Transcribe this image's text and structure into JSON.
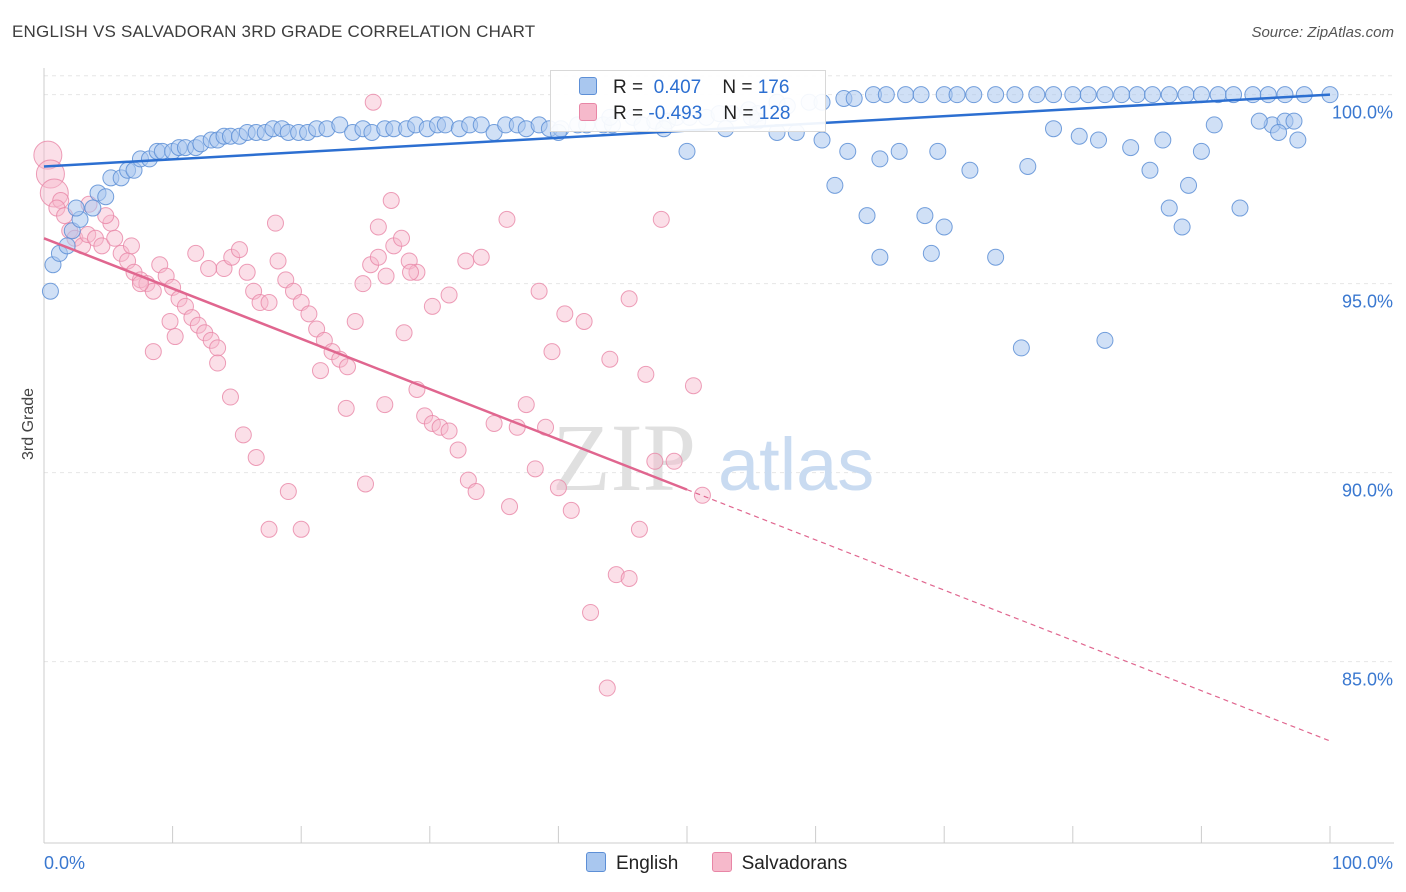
{
  "header": {
    "title": "ENGLISH VS SALVADORAN 3RD GRADE CORRELATION CHART",
    "source": "Source: ZipAtlas.com"
  },
  "colors": {
    "english_fill": "#a9c7ef",
    "english_stroke": "#5d8fd6",
    "english_line": "#2c6fd1",
    "salvadoran_fill": "#f6b9cb",
    "salvadoran_stroke": "#e886a6",
    "salvadoran_line": "#e0668f",
    "tick_text": "#3a78d0",
    "grid": "#e6e6e6"
  },
  "legend": {
    "english": {
      "r_label": "R =",
      "r_value": "0.407",
      "n_label": "N =",
      "n_value": "176"
    },
    "salvadoran": {
      "r_label": "R =",
      "r_value": "-0.493",
      "n_label": "N =",
      "n_value": "128"
    }
  },
  "bottom_legend": {
    "english": "English",
    "salvadoran": "Salvadorans"
  },
  "watermark": {
    "zip": "ZIP",
    "atlas": "atlas"
  },
  "chart_data": {
    "type": "scatter",
    "xlabel": "",
    "ylabel": "3rd Grade",
    "xlim": [
      0,
      100
    ],
    "ylim": [
      80.2,
      100.6
    ],
    "x_tick_labels": [
      "0.0%",
      "100.0%"
    ],
    "y_ticks": [
      85,
      90,
      95,
      100
    ],
    "y_tick_labels": [
      "85.0%",
      "90.0%",
      "95.0%",
      "100.0%"
    ],
    "grid": true,
    "series": [
      {
        "name": "English",
        "trend": {
          "x": [
            0,
            100
          ],
          "y": [
            98.1,
            100.0
          ],
          "dashed_from": null
        },
        "points": [
          [
            0.5,
            94.8
          ],
          [
            0.7,
            95.5
          ],
          [
            1.2,
            95.8
          ],
          [
            1.8,
            96.0
          ],
          [
            2.2,
            96.4
          ],
          [
            2.8,
            96.7
          ],
          [
            2.5,
            97.0
          ],
          [
            3.8,
            97.0
          ],
          [
            4.2,
            97.4
          ],
          [
            4.8,
            97.3
          ],
          [
            5.2,
            97.8
          ],
          [
            6.0,
            97.8
          ],
          [
            6.5,
            98.0
          ],
          [
            7.0,
            98.0
          ],
          [
            7.5,
            98.3
          ],
          [
            8.2,
            98.3
          ],
          [
            8.8,
            98.5
          ],
          [
            9.2,
            98.5
          ],
          [
            10.0,
            98.5
          ],
          [
            10.5,
            98.6
          ],
          [
            11.0,
            98.6
          ],
          [
            11.8,
            98.6
          ],
          [
            12.2,
            98.7
          ],
          [
            13.0,
            98.8
          ],
          [
            13.5,
            98.8
          ],
          [
            14.0,
            98.9
          ],
          [
            14.5,
            98.9
          ],
          [
            15.2,
            98.9
          ],
          [
            15.8,
            99.0
          ],
          [
            16.5,
            99.0
          ],
          [
            17.2,
            99.0
          ],
          [
            17.8,
            99.1
          ],
          [
            18.5,
            99.1
          ],
          [
            19.0,
            99.0
          ],
          [
            19.8,
            99.0
          ],
          [
            20.5,
            99.0
          ],
          [
            21.2,
            99.1
          ],
          [
            22.0,
            99.1
          ],
          [
            23.0,
            99.2
          ],
          [
            24.0,
            99.0
          ],
          [
            24.8,
            99.1
          ],
          [
            25.5,
            99.0
          ],
          [
            26.5,
            99.1
          ],
          [
            27.2,
            99.1
          ],
          [
            28.2,
            99.1
          ],
          [
            28.9,
            99.2
          ],
          [
            29.8,
            99.1
          ],
          [
            30.6,
            99.2
          ],
          [
            31.2,
            99.2
          ],
          [
            32.3,
            99.1
          ],
          [
            33.1,
            99.2
          ],
          [
            34.0,
            99.2
          ],
          [
            35.0,
            99.0
          ],
          [
            35.9,
            99.2
          ],
          [
            36.8,
            99.2
          ],
          [
            37.5,
            99.1
          ],
          [
            38.5,
            99.2
          ],
          [
            39.3,
            99.1
          ],
          [
            40.2,
            99.1
          ],
          [
            41.5,
            99.2
          ],
          [
            42.2,
            99.2
          ],
          [
            43.5,
            99.2
          ],
          [
            44.2,
            99.2
          ],
          [
            45.8,
            99.4
          ],
          [
            46.5,
            99.2
          ],
          [
            47.5,
            99.3
          ],
          [
            48.5,
            99.3
          ],
          [
            49.2,
            99.4
          ],
          [
            50.2,
            99.4
          ],
          [
            51.5,
            99.4
          ],
          [
            52.5,
            99.5
          ],
          [
            53.5,
            99.5
          ],
          [
            54.8,
            99.6
          ],
          [
            55.5,
            99.5
          ],
          [
            57.0,
            99.8
          ],
          [
            57.8,
            99.7
          ],
          [
            59.5,
            99.8
          ],
          [
            60.5,
            99.8
          ],
          [
            62.2,
            99.9
          ],
          [
            63.0,
            99.9
          ],
          [
            64.5,
            100.0
          ],
          [
            65.5,
            100.0
          ],
          [
            67.0,
            100.0
          ],
          [
            68.2,
            100.0
          ],
          [
            70.0,
            100.0
          ],
          [
            71.0,
            100.0
          ],
          [
            72.3,
            100.0
          ],
          [
            74.0,
            100.0
          ],
          [
            75.5,
            100.0
          ],
          [
            77.2,
            100.0
          ],
          [
            78.5,
            100.0
          ],
          [
            80.0,
            100.0
          ],
          [
            81.2,
            100.0
          ],
          [
            82.5,
            100.0
          ],
          [
            83.8,
            100.0
          ],
          [
            85.0,
            100.0
          ],
          [
            86.2,
            100.0
          ],
          [
            87.5,
            100.0
          ],
          [
            88.8,
            100.0
          ],
          [
            90.0,
            100.0
          ],
          [
            91.3,
            100.0
          ],
          [
            92.5,
            100.0
          ],
          [
            94.0,
            100.0
          ],
          [
            95.2,
            100.0
          ],
          [
            96.5,
            100.0
          ],
          [
            98.0,
            100.0
          ],
          [
            100.0,
            100.0
          ],
          [
            40.0,
            99.0
          ],
          [
            44.0,
            99.4
          ],
          [
            48.2,
            99.1
          ],
          [
            53.0,
            99.1
          ],
          [
            55.5,
            99.3
          ],
          [
            58.5,
            99.0
          ],
          [
            60.5,
            98.8
          ],
          [
            62.5,
            98.5
          ],
          [
            65.0,
            98.3
          ],
          [
            66.5,
            98.5
          ],
          [
            69.5,
            98.5
          ],
          [
            72.0,
            98.0
          ],
          [
            76.5,
            98.1
          ],
          [
            78.5,
            99.1
          ],
          [
            80.5,
            98.9
          ],
          [
            82.0,
            98.8
          ],
          [
            84.5,
            98.6
          ],
          [
            86.0,
            98.0
          ],
          [
            87.0,
            98.8
          ],
          [
            89.0,
            97.6
          ],
          [
            93.0,
            97.0
          ],
          [
            95.5,
            99.2
          ],
          [
            96.5,
            99.3
          ],
          [
            97.2,
            99.3
          ],
          [
            50.0,
            98.5
          ],
          [
            55.0,
            99.4
          ],
          [
            57.0,
            99.0
          ],
          [
            61.5,
            97.6
          ],
          [
            64.0,
            96.8
          ],
          [
            65.0,
            95.7
          ],
          [
            68.5,
            96.8
          ],
          [
            69.0,
            95.8
          ],
          [
            70.0,
            96.5
          ],
          [
            74.0,
            95.7
          ],
          [
            76.0,
            93.3
          ],
          [
            82.5,
            93.5
          ],
          [
            87.5,
            97.0
          ],
          [
            88.5,
            96.5
          ],
          [
            90.0,
            98.5
          ],
          [
            91.0,
            99.2
          ],
          [
            94.5,
            99.3
          ],
          [
            96.0,
            99.0
          ],
          [
            97.5,
            98.8
          ]
        ]
      },
      {
        "name": "Salvadorans",
        "trend": {
          "x": [
            0,
            100
          ],
          "y": [
            96.2,
            82.9
          ],
          "dashed_from": 50
        },
        "points": [
          [
            0.3,
            98.4
          ],
          [
            0.5,
            97.9
          ],
          [
            0.8,
            97.4
          ],
          [
            1.3,
            97.2
          ],
          [
            1.0,
            97.0
          ],
          [
            1.6,
            96.8
          ],
          [
            2.0,
            96.4
          ],
          [
            2.4,
            96.2
          ],
          [
            3.0,
            96.0
          ],
          [
            3.4,
            96.3
          ],
          [
            4.0,
            96.2
          ],
          [
            4.5,
            96.0
          ],
          [
            5.2,
            96.6
          ],
          [
            5.5,
            96.2
          ],
          [
            6.0,
            95.8
          ],
          [
            6.5,
            95.6
          ],
          [
            7.0,
            95.3
          ],
          [
            7.5,
            95.1
          ],
          [
            8.0,
            95.0
          ],
          [
            8.5,
            94.8
          ],
          [
            9.0,
            95.5
          ],
          [
            9.5,
            95.2
          ],
          [
            10.0,
            94.9
          ],
          [
            10.5,
            94.6
          ],
          [
            11.0,
            94.4
          ],
          [
            11.5,
            94.1
          ],
          [
            12.0,
            93.9
          ],
          [
            12.5,
            93.7
          ],
          [
            13.0,
            93.5
          ],
          [
            13.5,
            93.3
          ],
          [
            14.0,
            95.4
          ],
          [
            14.6,
            95.7
          ],
          [
            15.2,
            95.9
          ],
          [
            15.8,
            95.3
          ],
          [
            16.3,
            94.8
          ],
          [
            16.8,
            94.5
          ],
          [
            17.5,
            94.5
          ],
          [
            18.2,
            95.6
          ],
          [
            18.8,
            95.1
          ],
          [
            19.4,
            94.8
          ],
          [
            20.0,
            94.5
          ],
          [
            20.6,
            94.2
          ],
          [
            21.2,
            93.8
          ],
          [
            21.8,
            93.5
          ],
          [
            22.4,
            93.2
          ],
          [
            23.0,
            93.0
          ],
          [
            23.6,
            92.8
          ],
          [
            24.2,
            94.0
          ],
          [
            24.8,
            95.0
          ],
          [
            25.4,
            95.5
          ],
          [
            26.0,
            95.7
          ],
          [
            26.6,
            95.2
          ],
          [
            27.2,
            96.0
          ],
          [
            27.8,
            96.2
          ],
          [
            28.4,
            95.6
          ],
          [
            29.0,
            95.3
          ],
          [
            29.6,
            91.5
          ],
          [
            30.2,
            91.3
          ],
          [
            30.8,
            91.2
          ],
          [
            31.5,
            91.1
          ],
          [
            32.2,
            90.6
          ],
          [
            33.0,
            89.8
          ],
          [
            33.6,
            89.5
          ],
          [
            35.0,
            91.3
          ],
          [
            36.2,
            89.1
          ],
          [
            36.8,
            91.2
          ],
          [
            37.5,
            91.8
          ],
          [
            38.2,
            90.1
          ],
          [
            39.0,
            91.2
          ],
          [
            40.0,
            89.6
          ],
          [
            41.0,
            89.0
          ],
          [
            42.5,
            86.3
          ],
          [
            43.8,
            84.3
          ],
          [
            44.5,
            87.3
          ],
          [
            45.5,
            87.2
          ],
          [
            46.3,
            88.5
          ],
          [
            47.5,
            90.3
          ],
          [
            49.0,
            90.3
          ],
          [
            50.5,
            92.3
          ],
          [
            51.2,
            89.4
          ],
          [
            7.5,
            95.0
          ],
          [
            8.5,
            93.2
          ],
          [
            10.2,
            93.6
          ],
          [
            11.8,
            95.8
          ],
          [
            13.5,
            92.9
          ],
          [
            14.5,
            92.0
          ],
          [
            15.5,
            91.0
          ],
          [
            16.5,
            90.4
          ],
          [
            17.5,
            88.5
          ],
          [
            19.0,
            89.5
          ],
          [
            20.0,
            88.5
          ],
          [
            21.5,
            92.7
          ],
          [
            23.5,
            91.7
          ],
          [
            25.0,
            89.7
          ],
          [
            26.5,
            91.8
          ],
          [
            28.0,
            93.7
          ],
          [
            29.0,
            92.2
          ],
          [
            30.2,
            94.4
          ],
          [
            31.5,
            94.7
          ],
          [
            32.8,
            95.6
          ],
          [
            34.0,
            95.7
          ],
          [
            36.0,
            96.7
          ],
          [
            38.5,
            94.8
          ],
          [
            39.5,
            93.2
          ],
          [
            40.5,
            94.2
          ],
          [
            42.0,
            94.0
          ],
          [
            44.0,
            93.0
          ],
          [
            45.5,
            94.6
          ],
          [
            46.8,
            92.6
          ],
          [
            48.0,
            96.7
          ],
          [
            25.6,
            99.8
          ],
          [
            26.0,
            96.5
          ],
          [
            27.0,
            97.2
          ],
          [
            28.5,
            95.3
          ],
          [
            3.5,
            97.1
          ],
          [
            4.8,
            96.8
          ],
          [
            6.8,
            96.0
          ],
          [
            9.8,
            94.0
          ],
          [
            12.8,
            95.4
          ],
          [
            18.0,
            96.6
          ]
        ]
      }
    ]
  }
}
